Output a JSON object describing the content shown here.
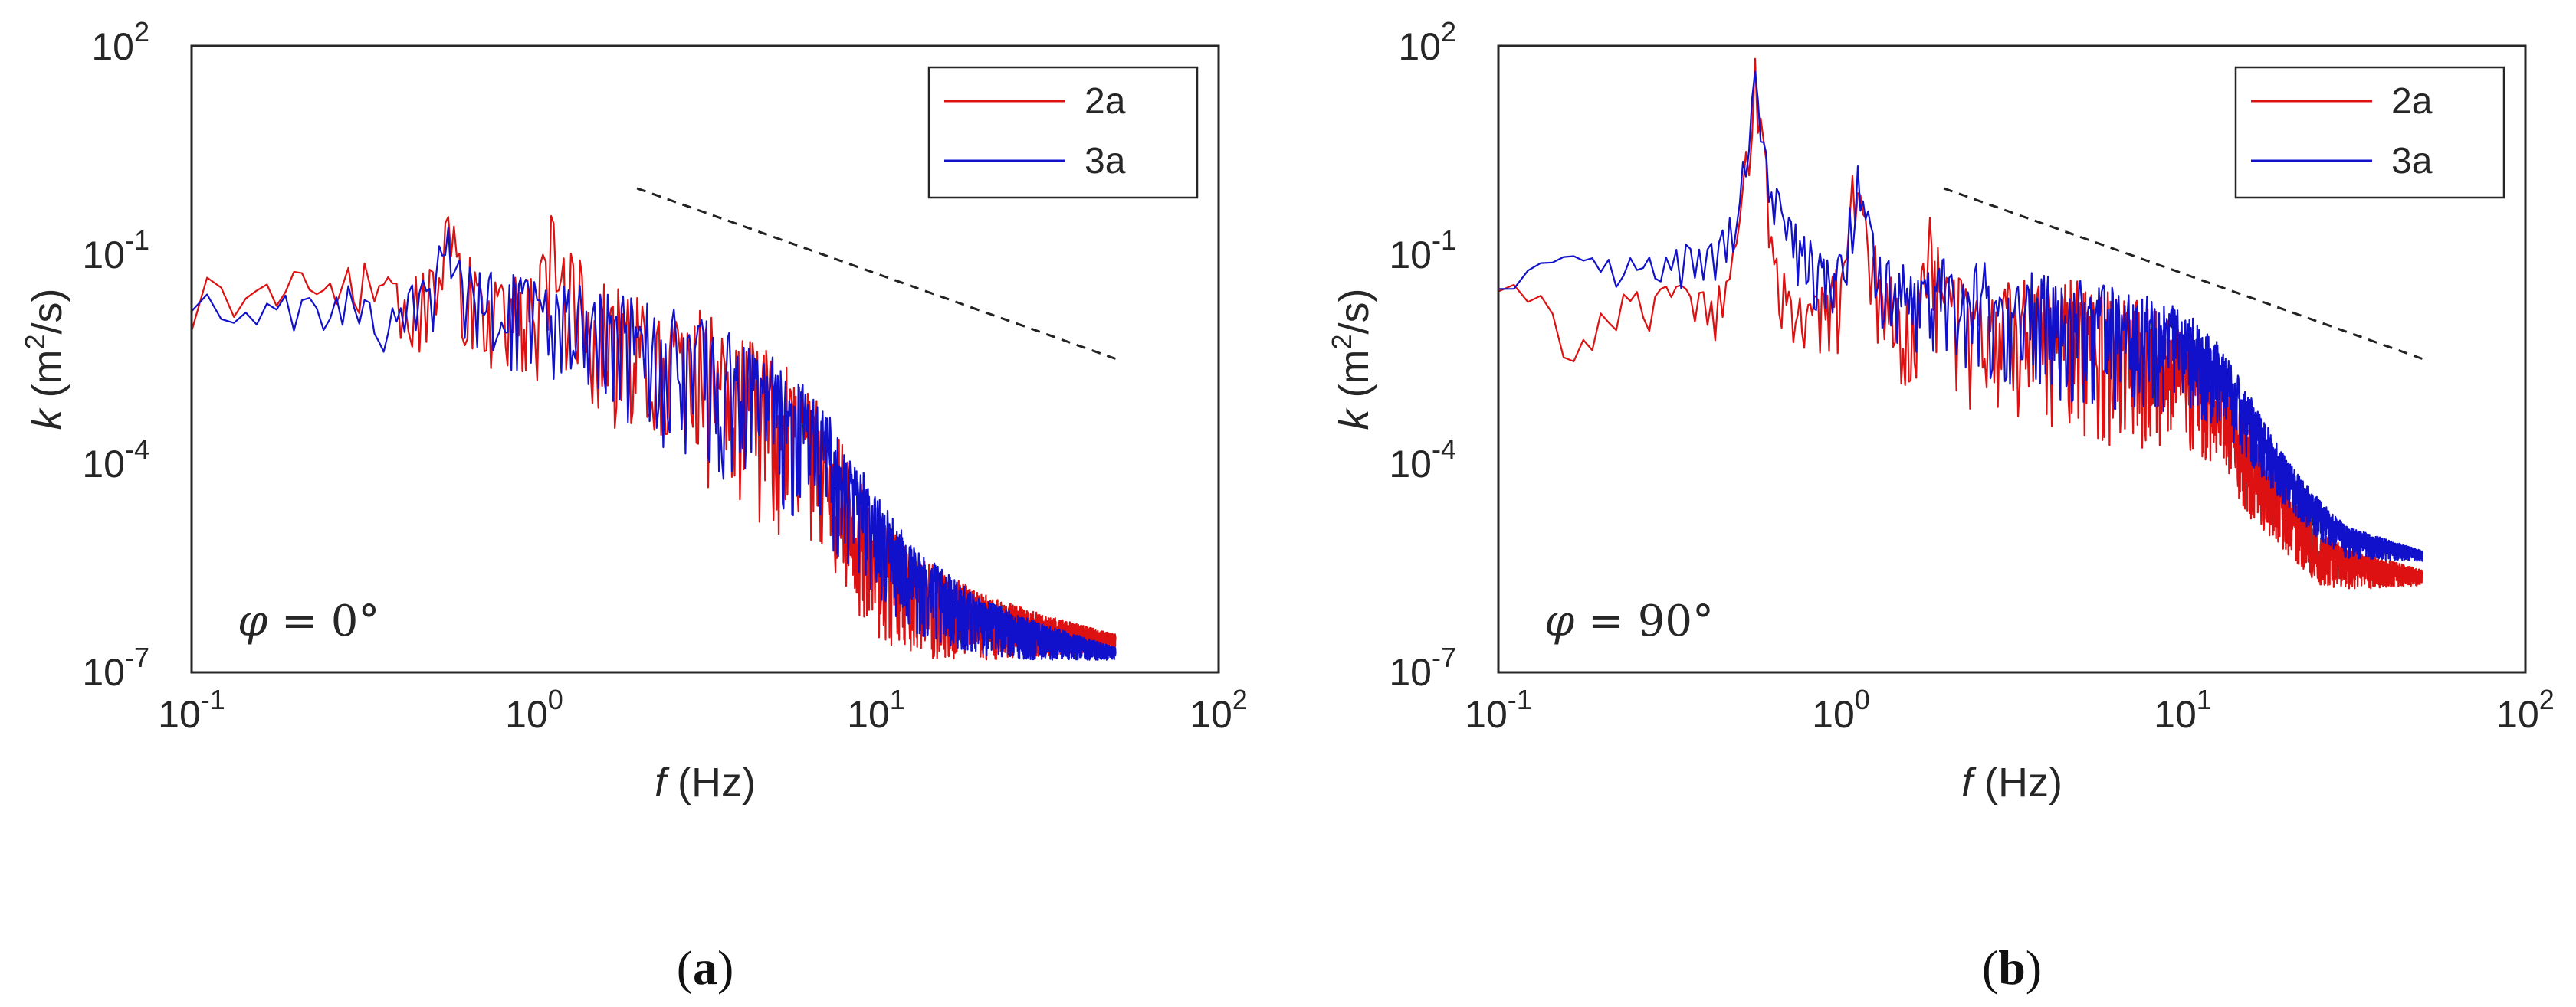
{
  "chart_data": [
    {
      "type": "line",
      "panel": "a",
      "caption_letter": "a",
      "annotation": {
        "symbol": "φ",
        "text": " = 0°"
      },
      "xlabel": {
        "var": "f",
        "unit": " (Hz)"
      },
      "ylabel": {
        "var": "k",
        "unit_prefix": " (m",
        "unit_sup": "2",
        "unit_suffix": "/s)"
      },
      "xscale": "log",
      "yscale": "log",
      "xlim": [
        0.1,
        100
      ],
      "ylim": [
        1e-07,
        100
      ],
      "xticks": [
        {
          "base": "10",
          "exp": "-1",
          "value": 0.1
        },
        {
          "base": "10",
          "exp": "0",
          "value": 1
        },
        {
          "base": "10",
          "exp": "1",
          "value": 10
        },
        {
          "base": "10",
          "exp": "2",
          "value": 100
        }
      ],
      "yticks": [
        {
          "base": "10",
          "exp": "-7",
          "value": 1e-07
        },
        {
          "base": "10",
          "exp": "-4",
          "value": 0.0001
        },
        {
          "base": "10",
          "exp": "-1",
          "value": 0.1
        },
        {
          "base": "10",
          "exp": "2",
          "value": 100
        }
      ],
      "legend_position": "top-right",
      "reference_line": {
        "style": "dashed",
        "color": "#222222",
        "points": [
          [
            2,
            0.9
          ],
          [
            50,
            0.0032
          ]
        ]
      },
      "series": [
        {
          "name": "2a",
          "color": "#dd1111",
          "anchors": [
            [
              0.1,
              0.018
            ],
            [
              0.12,
              0.04
            ],
            [
              0.15,
              0.025
            ],
            [
              0.2,
              0.035
            ],
            [
              0.25,
              0.02
            ],
            [
              0.3,
              0.04
            ],
            [
              0.4,
              0.03
            ],
            [
              0.5,
              0.025
            ],
            [
              0.56,
              0.3
            ],
            [
              0.6,
              0.05
            ],
            [
              0.7,
              0.03
            ],
            [
              0.8,
              0.02
            ],
            [
              1.0,
              0.015
            ],
            [
              1.12,
              0.1
            ],
            [
              1.5,
              0.01
            ],
            [
              2.0,
              0.006
            ],
            [
              3.0,
              0.003
            ],
            [
              5.0,
              0.00065
            ],
            [
              7.0,
              0.00012
            ],
            [
              10.0,
              6e-06
            ],
            [
              13.0,
              1.7e-06
            ],
            [
              20.0,
              7e-07
            ],
            [
              30.0,
              4.5e-07
            ],
            [
              50.0,
              3e-07
            ]
          ],
          "jitter": [
            0.5,
            0.5,
            0.6,
            0.8,
            1.0,
            1.4,
            1.4,
            1.8,
            1.8,
            1.6,
            1.1,
            0.7,
            0.4,
            0.15
          ]
        },
        {
          "name": "3a",
          "color": "#1111cc",
          "anchors": [
            [
              0.1,
              0.035
            ],
            [
              0.13,
              0.01
            ],
            [
              0.2,
              0.02
            ],
            [
              0.3,
              0.03
            ],
            [
              0.35,
              0.008
            ],
            [
              0.4,
              0.02
            ],
            [
              0.5,
              0.03
            ],
            [
              0.56,
              0.15
            ],
            [
              0.6,
              0.04
            ],
            [
              0.7,
              0.025
            ],
            [
              0.9,
              0.02
            ],
            [
              1.0,
              0.015
            ],
            [
              1.5,
              0.009
            ],
            [
              2.0,
              0.006
            ],
            [
              3.0,
              0.003
            ],
            [
              5.0,
              0.0008
            ],
            [
              7.0,
              0.00018
            ],
            [
              10.0,
              1.2e-05
            ],
            [
              13.0,
              2.5e-06
            ],
            [
              20.0,
              6.5e-07
            ],
            [
              30.0,
              3.5e-07
            ],
            [
              50.0,
              2e-07
            ]
          ],
          "jitter": [
            0.4,
            0.4,
            0.5,
            0.6,
            0.8,
            1.2,
            1.3,
            1.5,
            1.5,
            1.3,
            0.9,
            0.6,
            0.35,
            0.12
          ]
        }
      ]
    },
    {
      "type": "line",
      "panel": "b",
      "caption_letter": "b",
      "annotation": {
        "symbol": "φ",
        "text": " = 90°"
      },
      "xlabel": {
        "var": "f",
        "unit": " (Hz)"
      },
      "ylabel": {
        "var": "k",
        "unit_prefix": " (m",
        "unit_sup": "2",
        "unit_suffix": "/s)"
      },
      "xscale": "log",
      "yscale": "log",
      "xlim": [
        0.1,
        100
      ],
      "ylim": [
        1e-07,
        100
      ],
      "xticks": [
        {
          "base": "10",
          "exp": "-1",
          "value": 0.1
        },
        {
          "base": "10",
          "exp": "0",
          "value": 1
        },
        {
          "base": "10",
          "exp": "1",
          "value": 10
        },
        {
          "base": "10",
          "exp": "2",
          "value": 100
        }
      ],
      "yticks": [
        {
          "base": "10",
          "exp": "-7",
          "value": 1e-07
        },
        {
          "base": "10",
          "exp": "-4",
          "value": 0.0001
        },
        {
          "base": "10",
          "exp": "-1",
          "value": 0.1
        },
        {
          "base": "10",
          "exp": "2",
          "value": 100
        }
      ],
      "legend_position": "top-right",
      "reference_line": {
        "style": "dashed",
        "color": "#222222",
        "points": [
          [
            2,
            0.9
          ],
          [
            50,
            0.0032
          ]
        ]
      },
      "series": [
        {
          "name": "2a",
          "color": "#dd1111",
          "anchors": [
            [
              0.1,
              0.025
            ],
            [
              0.13,
              0.03
            ],
            [
              0.15,
              0.008
            ],
            [
              0.18,
              0.005
            ],
            [
              0.2,
              0.015
            ],
            [
              0.3,
              0.02
            ],
            [
              0.4,
              0.025
            ],
            [
              0.45,
              0.02
            ],
            [
              0.5,
              0.1
            ],
            [
              0.53,
              2.0
            ],
            [
              0.56,
              50.0
            ],
            [
              0.6,
              2.0
            ],
            [
              0.64,
              0.1
            ],
            [
              0.7,
              0.015
            ],
            [
              0.8,
              0.01
            ],
            [
              0.9,
              0.015
            ],
            [
              1.0,
              0.03
            ],
            [
              1.08,
              0.5
            ],
            [
              1.12,
              4.0
            ],
            [
              1.18,
              0.3
            ],
            [
              1.3,
              0.02
            ],
            [
              1.7,
              0.015
            ],
            [
              1.8,
              0.2
            ],
            [
              2.0,
              0.015
            ],
            [
              3.0,
              0.01
            ],
            [
              5.0,
              0.008
            ],
            [
              7.0,
              0.005
            ],
            [
              10.0,
              0.003
            ],
            [
              13.0,
              0.0008
            ],
            [
              16.0,
              0.0001
            ],
            [
              20.0,
              2.5e-05
            ],
            [
              25.0,
              6e-06
            ],
            [
              30.0,
              4e-06
            ],
            [
              50.0,
              2.5e-06
            ]
          ],
          "jitter": [
            0.4,
            0.4,
            0.5,
            0.6,
            0.8,
            1.0,
            1.2,
            1.4,
            1.6,
            1.5,
            1.1,
            0.7,
            0.4,
            0.15
          ]
        },
        {
          "name": "3a",
          "color": "#1111cc",
          "anchors": [
            [
              0.1,
              0.03
            ],
            [
              0.15,
              0.08
            ],
            [
              0.2,
              0.06
            ],
            [
              0.3,
              0.08
            ],
            [
              0.4,
              0.1
            ],
            [
              0.45,
              0.15
            ],
            [
              0.5,
              0.5
            ],
            [
              0.53,
              3.0
            ],
            [
              0.56,
              30.0
            ],
            [
              0.6,
              3.0
            ],
            [
              0.64,
              0.6
            ],
            [
              0.7,
              0.2
            ],
            [
              0.8,
              0.1
            ],
            [
              0.9,
              0.05
            ],
            [
              1.0,
              0.06
            ],
            [
              1.08,
              0.4
            ],
            [
              1.12,
              2.0
            ],
            [
              1.18,
              0.3
            ],
            [
              1.3,
              0.06
            ],
            [
              1.5,
              0.04
            ],
            [
              2.0,
              0.03
            ],
            [
              3.0,
              0.02
            ],
            [
              5.0,
              0.012
            ],
            [
              7.0,
              0.009
            ],
            [
              10.0,
              0.006
            ],
            [
              13.0,
              0.002
            ],
            [
              16.0,
              0.0004
            ],
            [
              20.0,
              7e-05
            ],
            [
              25.0,
              2e-05
            ],
            [
              30.0,
              9e-06
            ],
            [
              50.0,
              5e-06
            ]
          ],
          "jitter": [
            0.3,
            0.3,
            0.4,
            0.5,
            0.6,
            0.8,
            1.0,
            1.2,
            1.3,
            1.2,
            0.9,
            0.5,
            0.3,
            0.1
          ]
        }
      ]
    }
  ]
}
